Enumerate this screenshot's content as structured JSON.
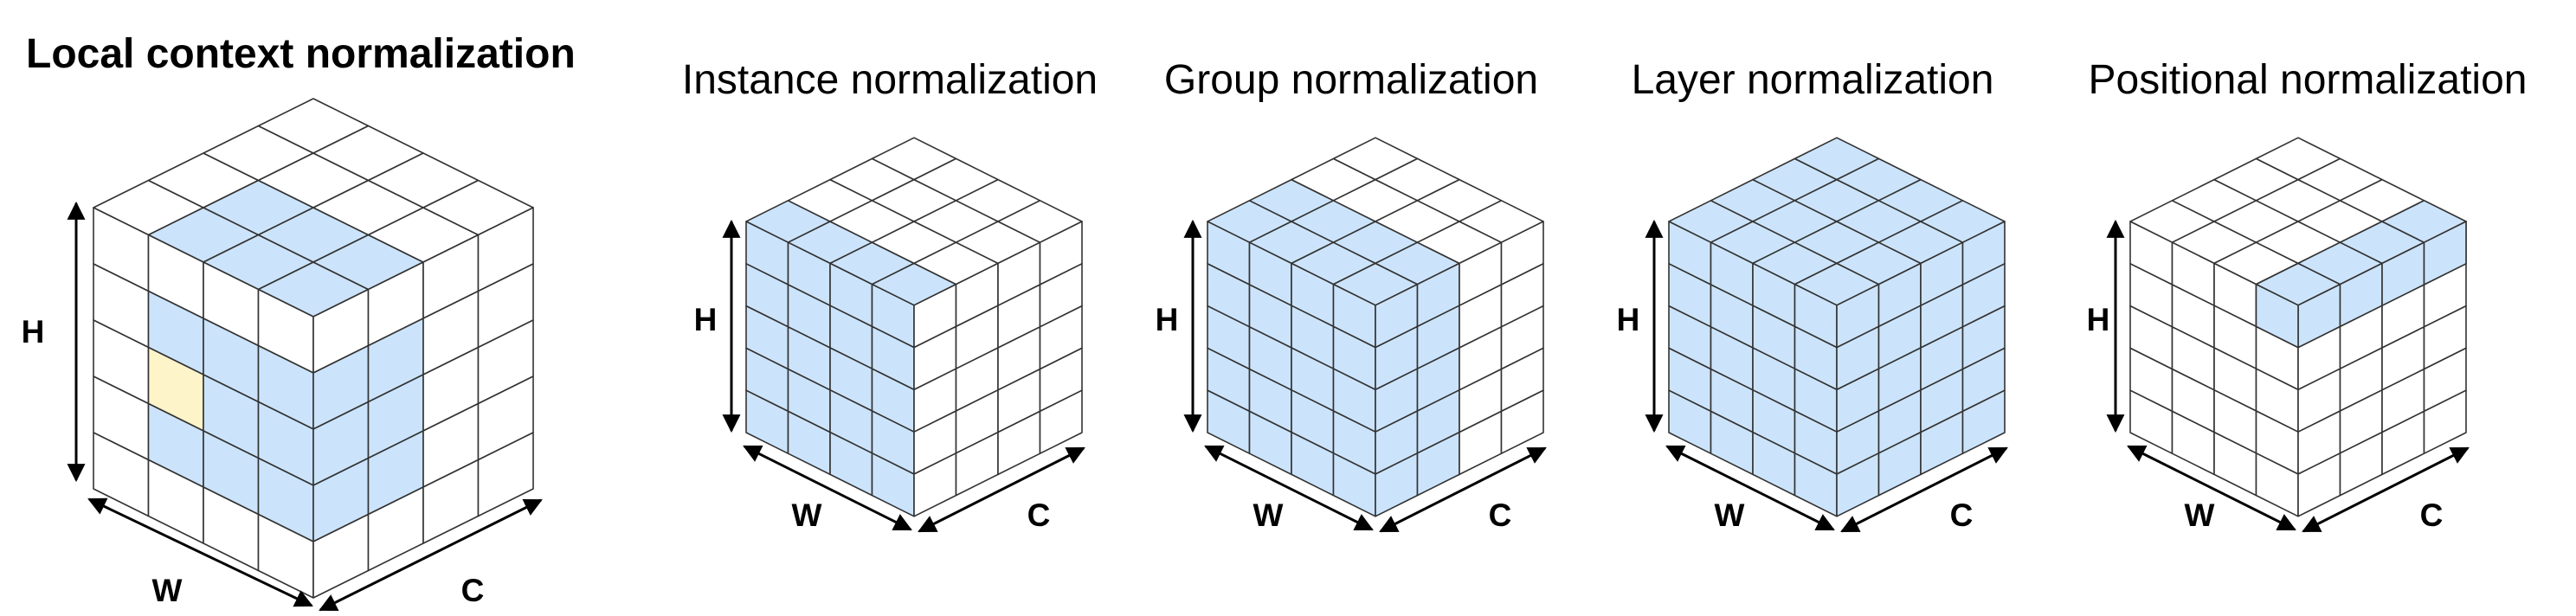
{
  "figure": {
    "panels": [
      {
        "id": "local-context",
        "title": "Local context normalization",
        "title_bold": true,
        "axes": {
          "h": "H",
          "w": "W",
          "c": "C"
        },
        "grid": {
          "front_cols": 4,
          "side_cols": 4,
          "rows": 5
        },
        "highlight": {
          "type": "local-window",
          "cells": "3x3",
          "center": [
            2,
            2
          ]
        }
      },
      {
        "id": "instance",
        "title": "Instance normalization",
        "title_bold": false,
        "axes": {
          "h": "H",
          "w": "W",
          "c": "C"
        },
        "grid": {
          "front_cols": 4,
          "side_cols": 4,
          "rows": 5
        },
        "highlight": {
          "type": "single-channel"
        }
      },
      {
        "id": "group",
        "title": "Group normalization",
        "title_bold": false,
        "axes": {
          "h": "H",
          "w": "W",
          "c": "C"
        },
        "grid": {
          "front_cols": 4,
          "side_cols": 4,
          "rows": 5
        },
        "highlight": {
          "type": "channel-group",
          "channels": 2
        }
      },
      {
        "id": "layer",
        "title": "Layer normalization",
        "title_bold": false,
        "axes": {
          "h": "H",
          "w": "W",
          "c": "C"
        },
        "grid": {
          "front_cols": 4,
          "side_cols": 4,
          "rows": 5
        },
        "highlight": {
          "type": "all"
        }
      },
      {
        "id": "positional",
        "title": "Positional normalization",
        "title_bold": false,
        "axes": {
          "h": "H",
          "w": "W",
          "c": "C"
        },
        "grid": {
          "front_cols": 4,
          "side_cols": 4,
          "rows": 5
        },
        "highlight": {
          "type": "single-position"
        }
      }
    ],
    "colors": {
      "highlight": "#cce4fb",
      "center": "#fdf5c9",
      "cell": "#ffffff",
      "line": "#333333",
      "arrow": "#000000"
    }
  }
}
